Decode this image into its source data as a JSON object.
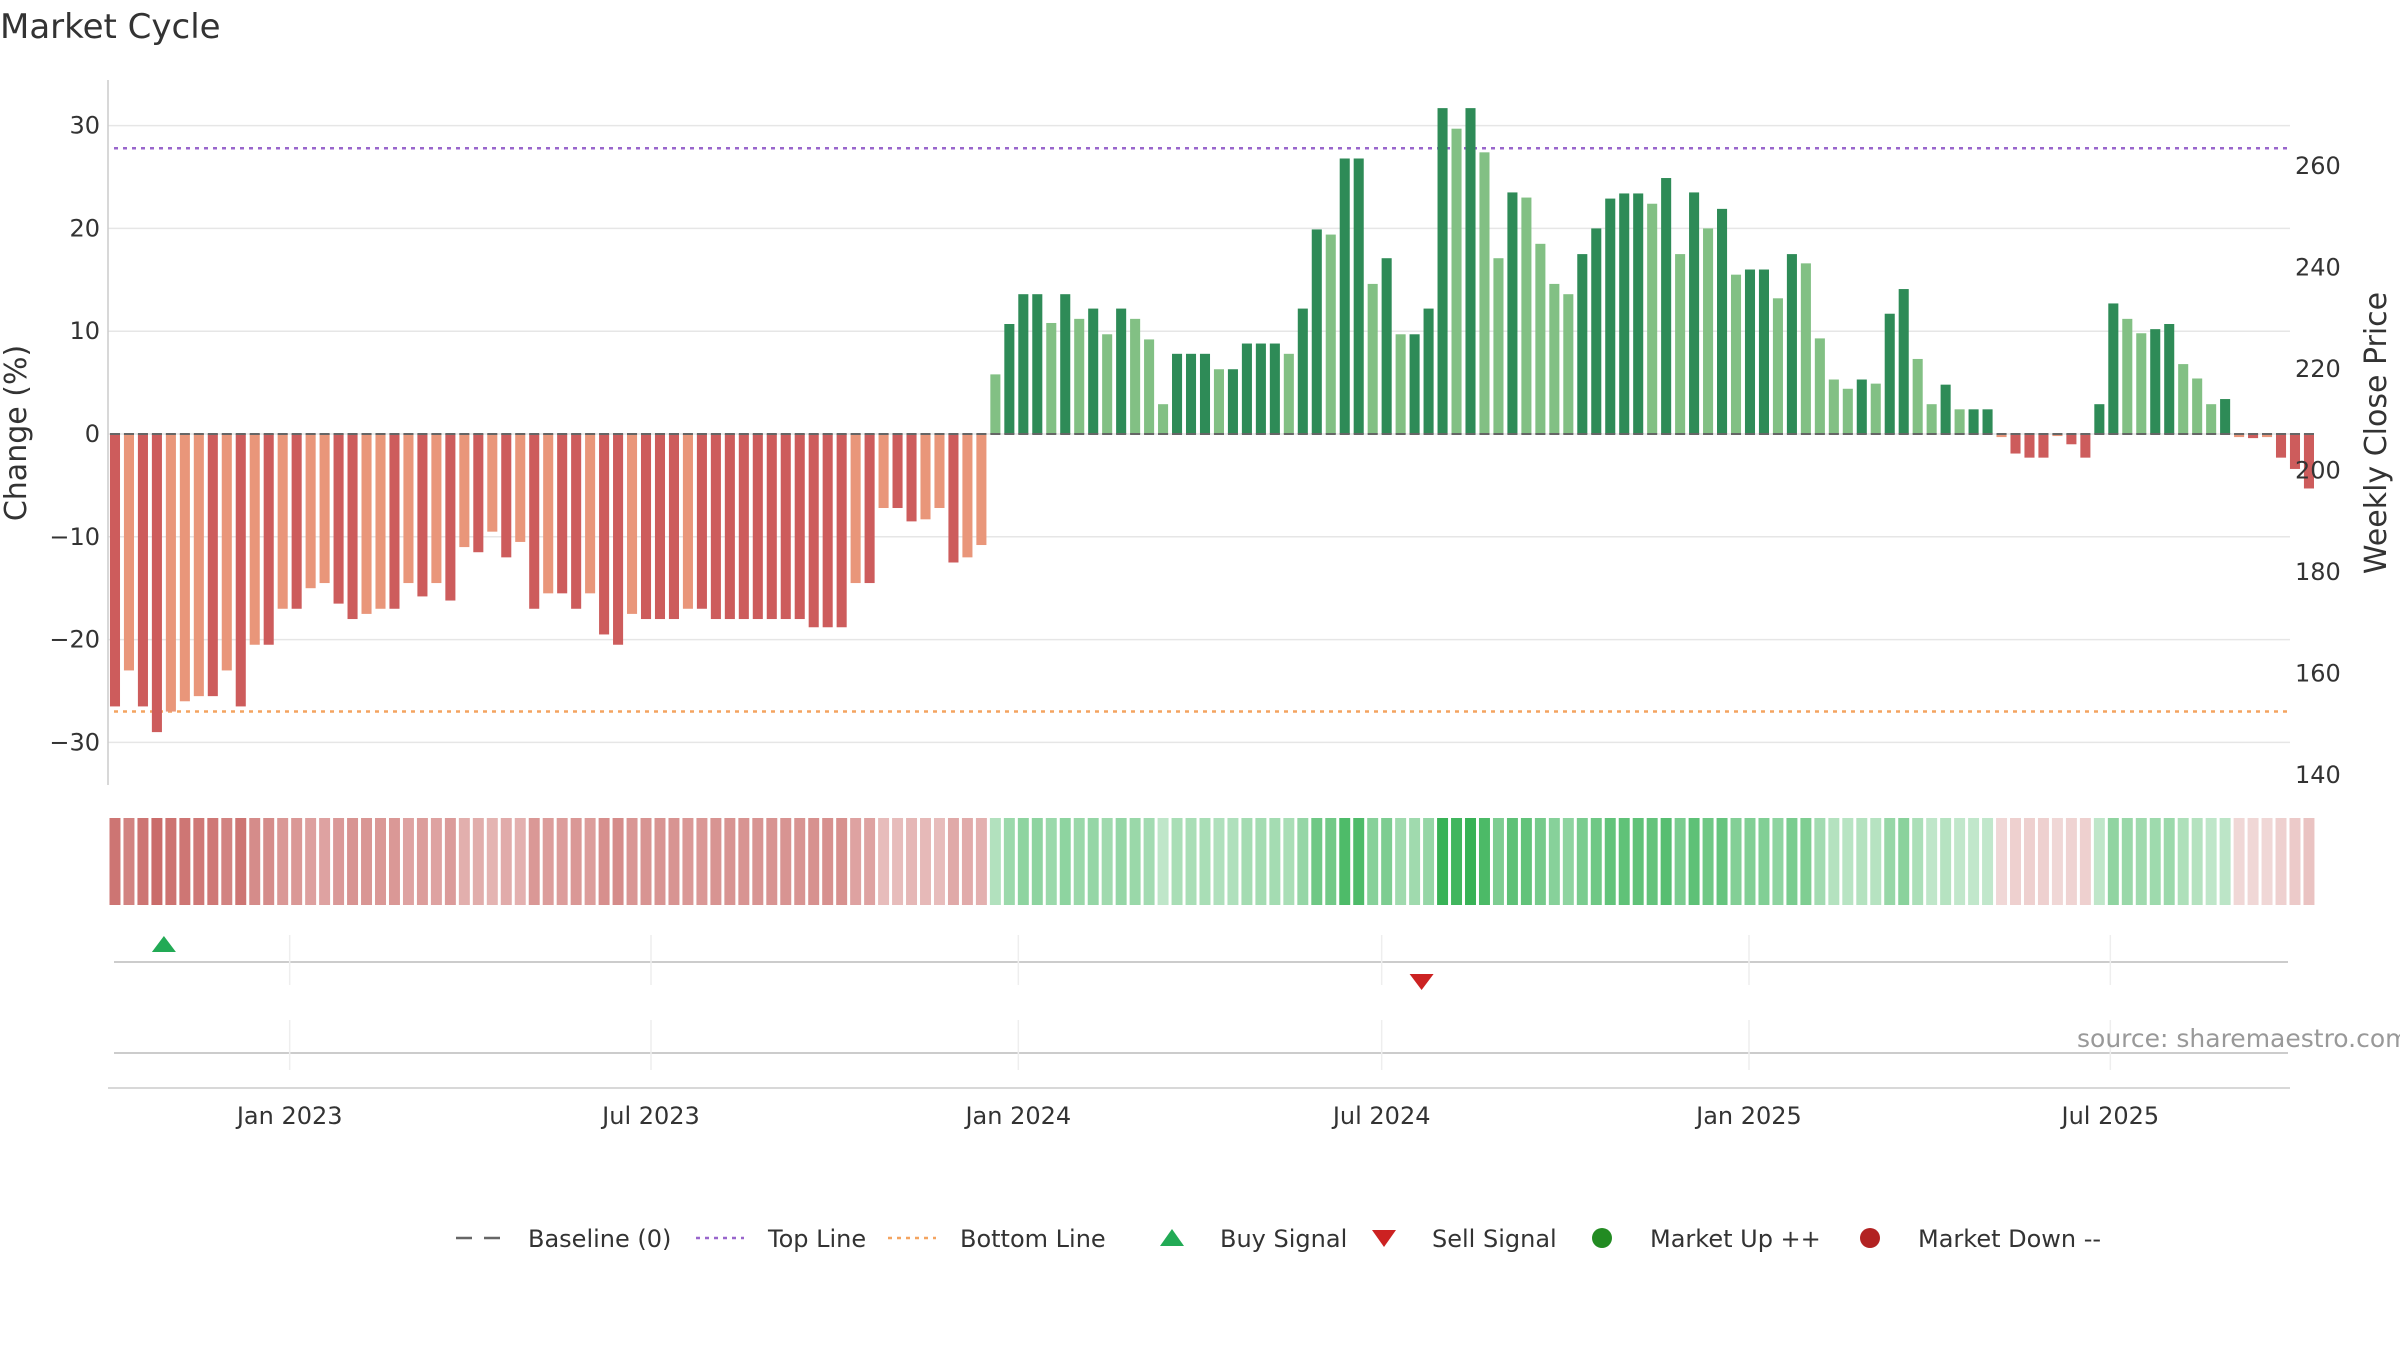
{
  "chart_data": {
    "type": "bar",
    "title": "Market Cycle",
    "ylabel": "Change (%)",
    "y2label": "Weekly Close Price",
    "ylim": [
      -34,
      34
    ],
    "y2lim": [
      138,
      276
    ],
    "yticks": [
      -30,
      -20,
      -10,
      0,
      10,
      20,
      30
    ],
    "y2ticks": [
      140,
      160,
      180,
      200,
      220,
      240,
      260
    ],
    "xlim": [
      "2022-10-02",
      "2025-09-29"
    ],
    "xticks": [
      {
        "date": "2023-01-01",
        "label": "Jan 2023"
      },
      {
        "date": "2023-07-01",
        "label": "Jul 2023"
      },
      {
        "date": "2024-01-01",
        "label": "Jan 2024"
      },
      {
        "date": "2024-07-01",
        "label": "Jul 2024"
      },
      {
        "date": "2025-01-01",
        "label": "Jan 2025"
      },
      {
        "date": "2025-07-01",
        "label": "Jul 2025"
      }
    ],
    "first_week": "2022-10-02",
    "week_days": 7,
    "top_line": 27.8,
    "bottom_line": -27,
    "colors": {
      "pos_strong": "#2e8b57",
      "pos_light": "#82c084",
      "neg_strong": "#cd5c5c",
      "neg_light": "#e9967a",
      "top_line": "#9966cc",
      "bottom_line": "#f4a460",
      "baseline": "#666666",
      "buy": "#22aa55",
      "sell": "#cc2222",
      "up": "#228b22",
      "down": "#b22222"
    },
    "values": [
      -26.5,
      -23,
      -26.5,
      -29,
      -27,
      -26,
      -25.5,
      -25.5,
      -23,
      -26.5,
      -20.5,
      -20.5,
      -17,
      -17,
      -15,
      -14.5,
      -16.5,
      -18,
      -17.5,
      -17,
      -17,
      -14.5,
      -15.8,
      -14.5,
      -16.2,
      -11,
      -11.5,
      -9.5,
      -12,
      -10.5,
      -17,
      -15.5,
      -15.5,
      -17,
      -15.5,
      -19.5,
      -20.5,
      -17.5,
      -18,
      -18,
      -18,
      -17,
      -17,
      -18,
      -18,
      -18,
      -18,
      -18,
      -18,
      -18,
      -18.8,
      -18.8,
      -18.8,
      -14.5,
      -14.5,
      -7.2,
      -7.2,
      -8.5,
      -8.3,
      -7.2,
      -12.5,
      -12,
      -10.8,
      5.8,
      10.7,
      13.6,
      13.6,
      10.8,
      13.6,
      11.2,
      12.2,
      9.7,
      12.2,
      11.2,
      9.2,
      2.9,
      7.8,
      7.8,
      7.8,
      6.3,
      6.3,
      8.8,
      8.8,
      8.8,
      7.8,
      12.2,
      19.9,
      19.4,
      26.8,
      26.8,
      14.6,
      17.1,
      9.7,
      9.7,
      12.2,
      31.7,
      29.7,
      31.7,
      27.4,
      17.1,
      23.5,
      23,
      18.5,
      14.6,
      13.6,
      17.5,
      20,
      22.9,
      23.4,
      23.4,
      22.4,
      24.9,
      17.5,
      23.5,
      20,
      21.9,
      15.5,
      16,
      16,
      13.2,
      17.5,
      16.6,
      9.3,
      5.3,
      4.4,
      5.3,
      4.9,
      11.7,
      14.1,
      7.3,
      2.9,
      4.8,
      2.4,
      2.4,
      2.4,
      -0.3,
      -1.9,
      -2.3,
      -2.3,
      -0.2,
      -1,
      -2.3,
      2.9,
      12.7,
      11.2,
      9.8,
      10.2,
      10.7,
      6.8,
      5.4,
      2.9,
      3.4,
      -0.3,
      -0.4,
      -0.3,
      -2.3,
      -3.4,
      -5.3
    ],
    "price": [],
    "buy_signal_dates": [
      "2022-10-30"
    ],
    "sell_signal_dates": [
      "2024-07-21"
    ],
    "annotation": "source: sharemaestro.com",
    "legend": [
      {
        "label": "Baseline (0)",
        "marker": "dash"
      },
      {
        "label": "Top Line",
        "marker": "dot-purple"
      },
      {
        "label": "Bottom Line",
        "marker": "dot-orange"
      },
      {
        "label": "Buy Signal",
        "marker": "tri-up"
      },
      {
        "label": "Sell Signal",
        "marker": "tri-down"
      },
      {
        "label": "Market Up ++",
        "marker": "circle-green"
      },
      {
        "label": "Market Down --",
        "marker": "circle-red"
      }
    ],
    "legend_position": "bottom-center",
    "grid": true
  }
}
